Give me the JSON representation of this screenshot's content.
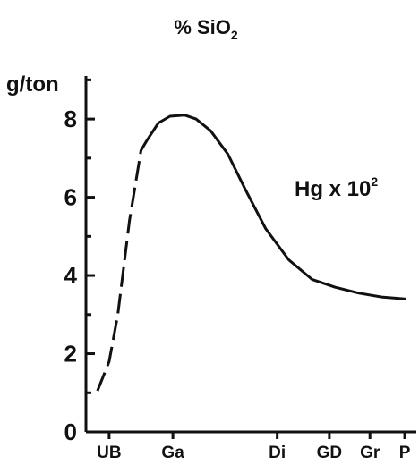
{
  "chart_data": {
    "type": "line",
    "title_main": "% SiO",
    "title_sub": "2",
    "ylabel": "g/ton",
    "ylim": [
      0,
      9.1
    ],
    "yticks": [
      0,
      2,
      4,
      6,
      8
    ],
    "categories": [
      "UB",
      "Ga",
      "Di",
      "GD",
      "Gr",
      "P"
    ],
    "category_positions": [
      0,
      1.1,
      2.9,
      3.8,
      4.5,
      5.1
    ],
    "xlim": [
      -0.4,
      5.3
    ],
    "annotation_main": "Hg x 10",
    "annotation_sup": "2",
    "series": [
      {
        "name": "Hg x 10²",
        "dashed": {
          "x": [
            -0.2,
            0.0,
            0.15,
            0.35,
            0.55
          ],
          "y": [
            1.05,
            1.8,
            3.0,
            5.4,
            7.2
          ]
        },
        "solid": {
          "x": [
            0.55,
            0.65,
            0.85,
            1.05,
            1.3,
            1.5,
            1.75,
            2.05,
            2.35,
            2.7,
            3.1,
            3.5,
            3.9,
            4.3,
            4.7,
            5.1
          ],
          "y": [
            7.2,
            7.45,
            7.9,
            8.07,
            8.1,
            8.0,
            7.7,
            7.1,
            6.2,
            5.2,
            4.4,
            3.9,
            3.7,
            3.55,
            3.45,
            3.4
          ]
        }
      }
    ],
    "colors": {
      "line": "#111111",
      "axis": "#111111"
    }
  }
}
